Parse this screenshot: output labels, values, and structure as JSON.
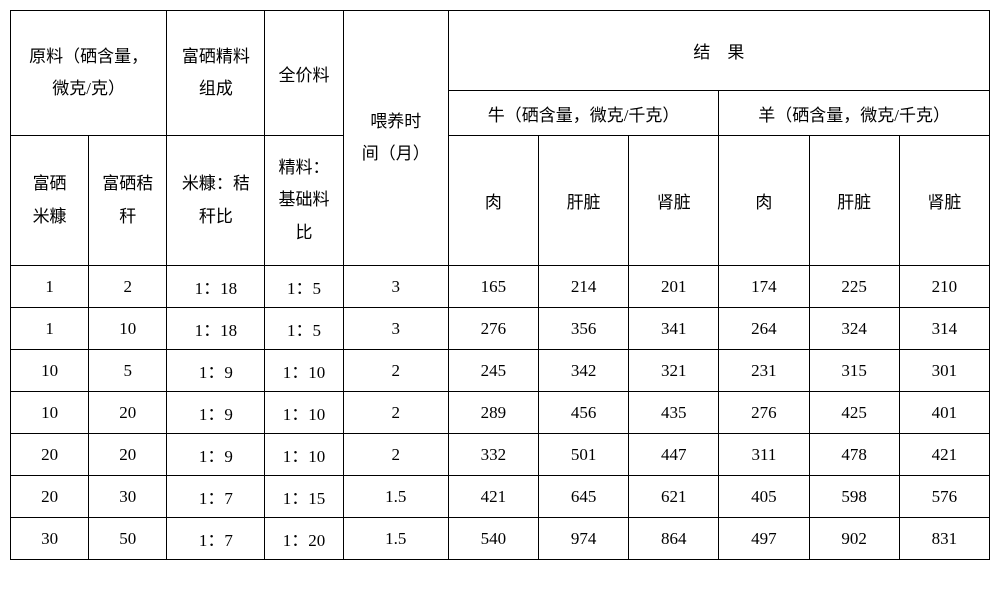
{
  "headers": {
    "raw_material": "原料（硒含量，\n微克/克）",
    "concentrate_comp": "富硒精料\n组成",
    "full_price": "全价料",
    "feeding_time": "喂养时\n间（月）",
    "result": "结　果",
    "cattle": "牛（硒含量，微克/千克）",
    "sheep": "羊（硒含量，微克/千克）",
    "rice_bran": "富硒\n米糠",
    "straw": "富硒秸\n秆",
    "bran_straw_ratio": "米糠：秸\n秆比",
    "conc_base_ratio": "精料：\n基础料\n比",
    "meat": "肉",
    "liver": "肝脏",
    "kidney": "肾脏"
  },
  "rows": [
    {
      "a": "1",
      "b": "2",
      "c": "1：18",
      "d": "1：5",
      "e": "3",
      "f": "165",
      "g": "214",
      "h": "201",
      "i": "174",
      "j": "225",
      "k": "210"
    },
    {
      "a": "1",
      "b": "10",
      "c": "1：18",
      "d": "1：5",
      "e": "3",
      "f": "276",
      "g": "356",
      "h": "341",
      "i": "264",
      "j": "324",
      "k": "314"
    },
    {
      "a": "10",
      "b": "5",
      "c": "1：9",
      "d": "1：10",
      "e": "2",
      "f": "245",
      "g": "342",
      "h": "321",
      "i": "231",
      "j": "315",
      "k": "301"
    },
    {
      "a": "10",
      "b": "20",
      "c": "1：9",
      "d": "1：10",
      "e": "2",
      "f": "289",
      "g": "456",
      "h": "435",
      "i": "276",
      "j": "425",
      "k": "401"
    },
    {
      "a": "20",
      "b": "20",
      "c": "1：9",
      "d": "1：10",
      "e": "2",
      "f": "332",
      "g": "501",
      "h": "447",
      "i": "311",
      "j": "478",
      "k": "421"
    },
    {
      "a": "20",
      "b": "30",
      "c": "1：7",
      "d": "1：15",
      "e": "1.5",
      "f": "421",
      "g": "645",
      "h": "621",
      "i": "405",
      "j": "598",
      "k": "576"
    },
    {
      "a": "30",
      "b": "50",
      "c": "1：7",
      "d": "1：20",
      "e": "1.5",
      "f": "540",
      "g": "974",
      "h": "864",
      "i": "497",
      "j": "902",
      "k": "831"
    }
  ]
}
